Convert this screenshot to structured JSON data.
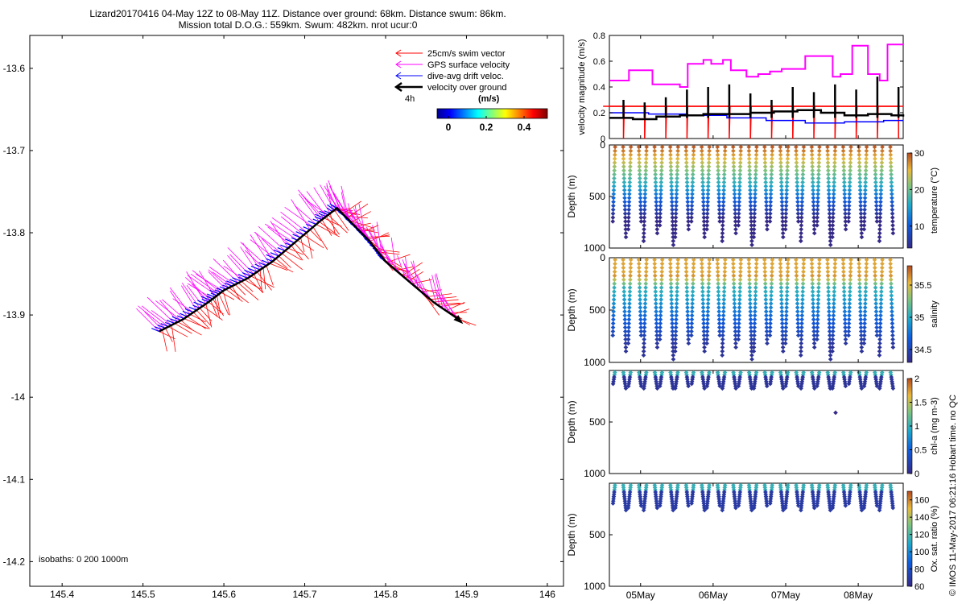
{
  "title": {
    "line1": "Lizard20170416 04-May 12Z to 08-May 11Z. Distance over ground: 68km. Distance swum: 86km.",
    "line2": "Mission total D.O.G.: 559km. Swum: 482km. nrot ucur:0"
  },
  "credit": "© IMOS 11-May-2017 06:21:16 Hobart time. no QC",
  "colors": {
    "swim": "#ff0000",
    "gps": "#ff00ff",
    "drift": "#0000ff",
    "ground": "#000000"
  },
  "chart_data": [
    {
      "type": "scatter",
      "xlim": [
        145.36,
        146.02
      ],
      "ylim": [
        -14.23,
        -13.56
      ],
      "x_ticks": [
        "145.4",
        "145.5",
        "145.6",
        "145.7",
        "145.8",
        "145.9",
        "146"
      ],
      "y_ticks": [
        "-13.6",
        "-13.7",
        "-13.8",
        "-13.9",
        "-14",
        "-14.1",
        "-14.2"
      ],
      "isobaths_label": "isobaths: 0   200  1000m",
      "legend": {
        "swim": "25cm/s swim vector",
        "gps": "GPS surface velocity",
        "drift": "dive-avg drift veloc.",
        "ground": "velocity over ground",
        "scale_label": "4h",
        "colorbar_title": "(m/s)",
        "colorbar_ticks": [
          "0",
          "0.2",
          "0.4"
        ]
      },
      "track": {
        "lon": [
          145.52,
          145.55,
          145.58,
          145.6,
          145.63,
          145.66,
          145.69,
          145.72,
          145.74,
          145.76,
          145.78,
          145.8,
          145.83,
          145.86,
          145.89
        ],
        "lat": [
          -13.92,
          -13.905,
          -13.885,
          -13.87,
          -13.855,
          -13.835,
          -13.81,
          -13.785,
          -13.77,
          -13.79,
          -13.81,
          -13.835,
          -13.86,
          -13.885,
          -13.905
        ]
      }
    },
    {
      "type": "line",
      "ylabel": "velocity magnitude (m/s)",
      "ylim": [
        0,
        0.8
      ],
      "y_ticks": [
        "0",
        "0.2",
        "0.4",
        "0.6",
        "0.8"
      ],
      "series": {
        "gps": {
          "x": [
            0,
            0.2,
            0.25,
            0.5,
            0.55,
            0.9,
            1.0,
            1.2,
            1.3,
            1.45,
            1.55,
            1.75,
            1.9,
            2.05,
            2.2,
            2.4,
            2.5,
            2.7,
            2.85,
            2.95,
            3.1,
            3.3,
            3.45,
            3.55,
            3.75
          ],
          "y": [
            0.45,
            0.45,
            0.53,
            0.53,
            0.42,
            0.4,
            0.58,
            0.61,
            0.58,
            0.61,
            0.53,
            0.48,
            0.5,
            0.52,
            0.54,
            0.54,
            0.64,
            0.64,
            0.48,
            0.5,
            0.72,
            0.5,
            0.45,
            0.73,
            0.73
          ]
        },
        "ground": {
          "x": [
            0,
            0.3,
            0.6,
            0.9,
            1.2,
            1.5,
            1.8,
            2.1,
            2.4,
            2.7,
            3.0,
            3.3,
            3.6,
            3.75
          ],
          "y": [
            0.16,
            0.15,
            0.17,
            0.18,
            0.19,
            0.19,
            0.2,
            0.21,
            0.22,
            0.2,
            0.18,
            0.19,
            0.18,
            0.17
          ]
        },
        "drift": {
          "x": [
            0,
            0.5,
            1.0,
            1.5,
            2.0,
            2.5,
            3.0,
            3.5,
            3.75
          ],
          "y": [
            0.2,
            0.19,
            0.18,
            0.16,
            0.14,
            0.12,
            0.13,
            0.14,
            0.14
          ]
        },
        "swim_level": 0.25,
        "spike_times": [
          0.18,
          0.45,
          0.72,
          0.99,
          1.26,
          1.53,
          1.8,
          2.07,
          2.34,
          2.61,
          2.88,
          3.15,
          3.42,
          3.69
        ],
        "spike_heights": [
          0.3,
          0.28,
          0.32,
          0.38,
          0.4,
          0.42,
          0.35,
          0.3,
          0.4,
          0.36,
          0.42,
          0.38,
          0.48,
          0.4
        ]
      }
    },
    {
      "type": "scatter",
      "name": "temperature",
      "ylabel": "Depth (m)",
      "ylim": [
        1000,
        0
      ],
      "y_ticks": [
        "0",
        "500",
        "1000"
      ],
      "cbar_label": "temperature (°C)",
      "cbar_ticks": [
        "10",
        "20",
        "30"
      ],
      "cbar_range": [
        4,
        30
      ],
      "profiles": 36,
      "max_depth": 1000
    },
    {
      "type": "scatter",
      "name": "salinity",
      "ylabel": "Depth (m)",
      "ylim": [
        1000,
        0
      ],
      "y_ticks": [
        "0",
        "500",
        "1000"
      ],
      "cbar_label": "salinity",
      "cbar_ticks": [
        "34.5",
        "35",
        "35.5"
      ],
      "cbar_range": [
        34.3,
        35.8
      ],
      "profiles": 36,
      "max_depth": 1000
    },
    {
      "type": "scatter",
      "name": "chl-a",
      "ylabel": "Depth (m)",
      "ylim": [
        1000,
        0
      ],
      "y_ticks": [
        "500",
        "1000"
      ],
      "cbar_label": "chl-a (mg m-3)",
      "cbar_ticks": [
        "0",
        "0.5",
        "1",
        "1.5",
        "2"
      ],
      "cbar_range": [
        0,
        2
      ],
      "profiles": 36,
      "max_depth": 200
    },
    {
      "type": "scatter",
      "name": "oxygen",
      "ylabel": "Depth (m)",
      "ylim": [
        1000,
        0
      ],
      "y_ticks": [
        "500",
        "1000"
      ],
      "x_ticks": [
        "05May",
        "06May",
        "07May",
        "08May"
      ],
      "cbar_label": "Ox. sat. ratio (%)",
      "cbar_ticks": [
        "60",
        "80",
        "100",
        "120",
        "140",
        "160"
      ],
      "cbar_range": [
        60,
        170
      ],
      "profiles": 36,
      "max_depth": 290
    }
  ]
}
